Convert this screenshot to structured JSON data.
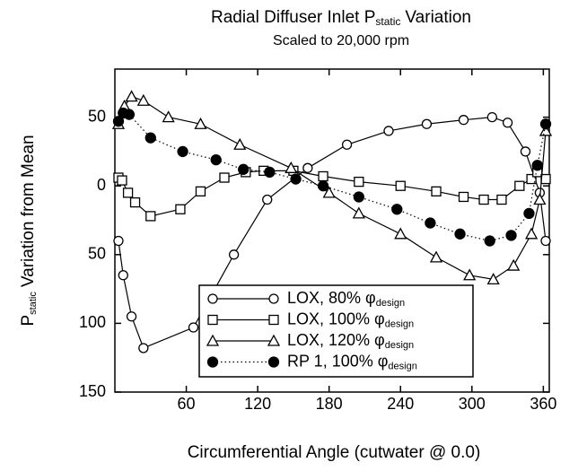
{
  "chart_data": {
    "type": "line",
    "title": "Radial Diffuser Inlet P",
    "title_subscript": "static",
    "title_suffix": "Variation",
    "subtitle": "Scaled to 20,000 rpm",
    "x_label": "Circumferential Angle (cutwater @ 0.0)",
    "y_label": "P",
    "y_label_subscript": "static",
    "y_label_suffix": "Variation from Mean",
    "xlim": [
      0,
      365
    ],
    "ylim": [
      -150,
      85
    ],
    "xticks": [
      60,
      120,
      180,
      240,
      300,
      360
    ],
    "yticks": [
      50,
      0,
      {
        "value": -50,
        "label": "50"
      },
      {
        "value": -100,
        "label": "100"
      },
      {
        "value": -150,
        "label": "150"
      }
    ],
    "series": [
      {
        "name": "LOX, 80% φ",
        "name_subscript": "design",
        "marker": "circle",
        "line": "solid",
        "color": "#000000",
        "x": [
          3,
          7,
          14,
          24,
          66,
          100,
          128,
          162,
          195,
          230,
          262,
          293,
          317,
          330,
          345,
          357,
          362
        ],
        "values": [
          -40,
          -65,
          -95,
          -118,
          -103,
          -50,
          -10,
          13,
          30,
          40,
          45,
          48,
          50,
          46,
          25,
          -5,
          -40
        ]
      },
      {
        "name": "LOX, 100% φ",
        "name_subscript": "design",
        "marker": "square",
        "line": "solid",
        "color": "#000000",
        "x": [
          3,
          6,
          11,
          17,
          30,
          55,
          72,
          92,
          110,
          125,
          150,
          175,
          205,
          240,
          270,
          293,
          310,
          325,
          340,
          350,
          355,
          362
        ],
        "values": [
          6,
          4,
          -5,
          -12,
          -22,
          -17,
          -4,
          6,
          10,
          11,
          11,
          7,
          3,
          0,
          -4,
          -8,
          -10,
          -10,
          0,
          5,
          10,
          5
        ]
      },
      {
        "name": "LOX, 120% φ",
        "name_subscript": "design",
        "marker": "triangle",
        "line": "solid",
        "color": "#000000",
        "x": [
          3,
          8,
          14,
          24,
          45,
          72,
          105,
          148,
          180,
          205,
          240,
          270,
          298,
          318,
          335,
          350,
          357,
          362
        ],
        "values": [
          45,
          58,
          65,
          62,
          50,
          45,
          30,
          13,
          -5,
          -20,
          -35,
          -52,
          -65,
          -68,
          -58,
          -35,
          -10,
          40
        ]
      },
      {
        "name": "RP 1, 100% φ",
        "name_subscript": "design",
        "marker": "filled-circle",
        "line": "dotted",
        "color": "#000000",
        "x": [
          3,
          7,
          12,
          30,
          57,
          85,
          108,
          130,
          152,
          175,
          205,
          237,
          265,
          290,
          315,
          333,
          348,
          355,
          362
        ],
        "values": [
          47,
          53,
          52,
          35,
          25,
          19,
          12,
          10,
          5,
          0,
          -8,
          -17,
          -27,
          -35,
          -40,
          -36,
          -20,
          15,
          45
        ]
      }
    ]
  }
}
